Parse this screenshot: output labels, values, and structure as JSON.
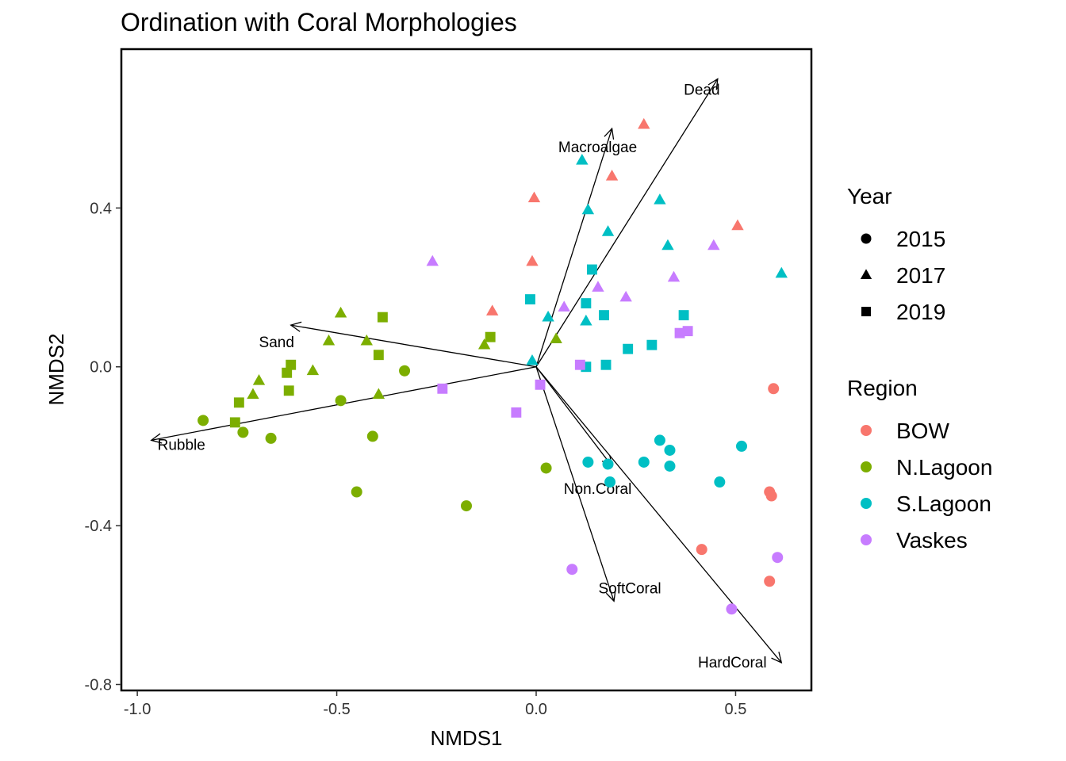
{
  "chart_data": {
    "type": "scatter",
    "title": "Ordination with Coral Morphologies",
    "xlabel": "NMDS1",
    "ylabel": "NMDS2",
    "xlim": [
      -1.04,
      0.69
    ],
    "ylim": [
      -0.815,
      0.8
    ],
    "x_ticks": [
      -1.0,
      -0.5,
      0.0,
      0.5
    ],
    "x_tick_labels": [
      "-1.0",
      "-0.5",
      "0.0",
      "0.5"
    ],
    "y_ticks": [
      -0.8,
      -0.4,
      0.0,
      0.4
    ],
    "y_tick_labels": [
      "-0.8",
      "-0.4",
      "0.0",
      "0.4"
    ],
    "grid": false,
    "legend_placement": "right",
    "legend_year": {
      "title": "Year",
      "entries": [
        {
          "label": "2015",
          "shape": "circle"
        },
        {
          "label": "2017",
          "shape": "triangle"
        },
        {
          "label": "2019",
          "shape": "square"
        }
      ]
    },
    "legend_region": {
      "title": "Region",
      "entries": [
        {
          "label": "BOW",
          "color": "#F8766D"
        },
        {
          "label": "N.Lagoon",
          "color": "#7CAE00"
        },
        {
          "label": "S.Lagoon",
          "color": "#00BFC4"
        },
        {
          "label": "Vaskes",
          "color": "#C77CFF"
        }
      ]
    },
    "vectors": [
      {
        "label": "Dead",
        "x": 0.455,
        "y": 0.725
      },
      {
        "label": "Macroalgae",
        "x": 0.19,
        "y": 0.6
      },
      {
        "label": "Sand",
        "x": -0.615,
        "y": 0.105
      },
      {
        "label": "Rubble",
        "x": -0.965,
        "y": -0.185
      },
      {
        "label": "Non.Coral",
        "x": 0.19,
        "y": -0.25
      },
      {
        "label": "SoftCoral",
        "x": 0.195,
        "y": -0.59
      },
      {
        "label": "HardCoral",
        "x": 0.615,
        "y": -0.745
      }
    ],
    "points": [
      {
        "x": 0.27,
        "y": 0.61,
        "year": "2017",
        "region": "BOW"
      },
      {
        "x": 0.19,
        "y": 0.48,
        "year": "2017",
        "region": "BOW"
      },
      {
        "x": -0.005,
        "y": 0.425,
        "year": "2017",
        "region": "BOW"
      },
      {
        "x": -0.01,
        "y": 0.265,
        "year": "2017",
        "region": "BOW"
      },
      {
        "x": -0.11,
        "y": 0.14,
        "year": "2017",
        "region": "BOW"
      },
      {
        "x": 0.505,
        "y": 0.355,
        "year": "2017",
        "region": "BOW"
      },
      {
        "x": 0.115,
        "y": 0.52,
        "year": "2017",
        "region": "S.Lagoon"
      },
      {
        "x": 0.13,
        "y": 0.395,
        "year": "2017",
        "region": "S.Lagoon"
      },
      {
        "x": 0.18,
        "y": 0.34,
        "year": "2017",
        "region": "S.Lagoon"
      },
      {
        "x": 0.31,
        "y": 0.42,
        "year": "2017",
        "region": "S.Lagoon"
      },
      {
        "x": 0.33,
        "y": 0.305,
        "year": "2017",
        "region": "S.Lagoon"
      },
      {
        "x": 0.615,
        "y": 0.235,
        "year": "2017",
        "region": "S.Lagoon"
      },
      {
        "x": 0.03,
        "y": 0.125,
        "year": "2017",
        "region": "S.Lagoon"
      },
      {
        "x": 0.125,
        "y": 0.115,
        "year": "2017",
        "region": "S.Lagoon"
      },
      {
        "x": -0.01,
        "y": 0.015,
        "year": "2017",
        "region": "S.Lagoon"
      },
      {
        "x": -0.26,
        "y": 0.265,
        "year": "2017",
        "region": "Vaskes"
      },
      {
        "x": 0.445,
        "y": 0.305,
        "year": "2017",
        "region": "Vaskes"
      },
      {
        "x": 0.345,
        "y": 0.225,
        "year": "2017",
        "region": "Vaskes"
      },
      {
        "x": 0.155,
        "y": 0.2,
        "year": "2017",
        "region": "Vaskes"
      },
      {
        "x": 0.225,
        "y": 0.175,
        "year": "2017",
        "region": "Vaskes"
      },
      {
        "x": 0.07,
        "y": 0.15,
        "year": "2017",
        "region": "Vaskes"
      },
      {
        "x": -0.49,
        "y": 0.135,
        "year": "2017",
        "region": "N.Lagoon"
      },
      {
        "x": -0.52,
        "y": 0.065,
        "year": "2017",
        "region": "N.Lagoon"
      },
      {
        "x": -0.425,
        "y": 0.065,
        "year": "2017",
        "region": "N.Lagoon"
      },
      {
        "x": -0.13,
        "y": 0.055,
        "year": "2017",
        "region": "N.Lagoon"
      },
      {
        "x": 0.05,
        "y": 0.07,
        "year": "2017",
        "region": "N.Lagoon"
      },
      {
        "x": -0.56,
        "y": -0.01,
        "year": "2017",
        "region": "N.Lagoon"
      },
      {
        "x": -0.695,
        "y": -0.035,
        "year": "2017",
        "region": "N.Lagoon"
      },
      {
        "x": -0.71,
        "y": -0.07,
        "year": "2017",
        "region": "N.Lagoon"
      },
      {
        "x": -0.395,
        "y": -0.07,
        "year": "2017",
        "region": "N.Lagoon"
      },
      {
        "x": 0.14,
        "y": 0.245,
        "year": "2019",
        "region": "S.Lagoon"
      },
      {
        "x": -0.015,
        "y": 0.17,
        "year": "2019",
        "region": "S.Lagoon"
      },
      {
        "x": 0.125,
        "y": 0.16,
        "year": "2019",
        "region": "S.Lagoon"
      },
      {
        "x": 0.17,
        "y": 0.13,
        "year": "2019",
        "region": "S.Lagoon"
      },
      {
        "x": 0.37,
        "y": 0.13,
        "year": "2019",
        "region": "S.Lagoon"
      },
      {
        "x": 0.29,
        "y": 0.055,
        "year": "2019",
        "region": "S.Lagoon"
      },
      {
        "x": 0.23,
        "y": 0.045,
        "year": "2019",
        "region": "S.Lagoon"
      },
      {
        "x": 0.125,
        "y": 0.0,
        "year": "2019",
        "region": "S.Lagoon"
      },
      {
        "x": 0.175,
        "y": 0.005,
        "year": "2019",
        "region": "S.Lagoon"
      },
      {
        "x": 0.36,
        "y": 0.085,
        "year": "2019",
        "region": "Vaskes"
      },
      {
        "x": 0.38,
        "y": 0.09,
        "year": "2019",
        "region": "Vaskes"
      },
      {
        "x": 0.11,
        "y": 0.005,
        "year": "2019",
        "region": "Vaskes"
      },
      {
        "x": 0.01,
        "y": -0.045,
        "year": "2019",
        "region": "Vaskes"
      },
      {
        "x": -0.235,
        "y": -0.055,
        "year": "2019",
        "region": "Vaskes"
      },
      {
        "x": -0.05,
        "y": -0.115,
        "year": "2019",
        "region": "Vaskes"
      },
      {
        "x": -0.385,
        "y": 0.125,
        "year": "2019",
        "region": "N.Lagoon"
      },
      {
        "x": -0.115,
        "y": 0.075,
        "year": "2019",
        "region": "N.Lagoon"
      },
      {
        "x": -0.395,
        "y": 0.03,
        "year": "2019",
        "region": "N.Lagoon"
      },
      {
        "x": -0.615,
        "y": 0.005,
        "year": "2019",
        "region": "N.Lagoon"
      },
      {
        "x": -0.625,
        "y": -0.015,
        "year": "2019",
        "region": "N.Lagoon"
      },
      {
        "x": -0.62,
        "y": -0.06,
        "year": "2019",
        "region": "N.Lagoon"
      },
      {
        "x": -0.745,
        "y": -0.09,
        "year": "2019",
        "region": "N.Lagoon"
      },
      {
        "x": -0.755,
        "y": -0.14,
        "year": "2019",
        "region": "N.Lagoon"
      },
      {
        "x": 0.595,
        "y": -0.055,
        "year": "2015",
        "region": "BOW"
      },
      {
        "x": 0.585,
        "y": -0.315,
        "year": "2015",
        "region": "BOW"
      },
      {
        "x": 0.59,
        "y": -0.325,
        "year": "2015",
        "region": "BOW"
      },
      {
        "x": 0.415,
        "y": -0.46,
        "year": "2015",
        "region": "BOW"
      },
      {
        "x": 0.585,
        "y": -0.54,
        "year": "2015",
        "region": "BOW"
      },
      {
        "x": 0.515,
        "y": -0.2,
        "year": "2015",
        "region": "S.Lagoon"
      },
      {
        "x": 0.31,
        "y": -0.185,
        "year": "2015",
        "region": "S.Lagoon"
      },
      {
        "x": 0.335,
        "y": -0.21,
        "year": "2015",
        "region": "S.Lagoon"
      },
      {
        "x": 0.13,
        "y": -0.24,
        "year": "2015",
        "region": "S.Lagoon"
      },
      {
        "x": 0.18,
        "y": -0.245,
        "year": "2015",
        "region": "S.Lagoon"
      },
      {
        "x": 0.27,
        "y": -0.24,
        "year": "2015",
        "region": "S.Lagoon"
      },
      {
        "x": 0.335,
        "y": -0.25,
        "year": "2015",
        "region": "S.Lagoon"
      },
      {
        "x": 0.46,
        "y": -0.29,
        "year": "2015",
        "region": "S.Lagoon"
      },
      {
        "x": 0.185,
        "y": -0.29,
        "year": "2015",
        "region": "S.Lagoon"
      },
      {
        "x": 0.605,
        "y": -0.48,
        "year": "2015",
        "region": "Vaskes"
      },
      {
        "x": 0.09,
        "y": -0.51,
        "year": "2015",
        "region": "Vaskes"
      },
      {
        "x": 0.49,
        "y": -0.61,
        "year": "2015",
        "region": "Vaskes"
      },
      {
        "x": -0.33,
        "y": -0.01,
        "year": "2015",
        "region": "N.Lagoon"
      },
      {
        "x": -0.49,
        "y": -0.085,
        "year": "2015",
        "region": "N.Lagoon"
      },
      {
        "x": -0.835,
        "y": -0.135,
        "year": "2015",
        "region": "N.Lagoon"
      },
      {
        "x": -0.735,
        "y": -0.165,
        "year": "2015",
        "region": "N.Lagoon"
      },
      {
        "x": -0.665,
        "y": -0.18,
        "year": "2015",
        "region": "N.Lagoon"
      },
      {
        "x": -0.41,
        "y": -0.175,
        "year": "2015",
        "region": "N.Lagoon"
      },
      {
        "x": 0.025,
        "y": -0.255,
        "year": "2015",
        "region": "N.Lagoon"
      },
      {
        "x": -0.45,
        "y": -0.315,
        "year": "2015",
        "region": "N.Lagoon"
      },
      {
        "x": -0.175,
        "y": -0.35,
        "year": "2015",
        "region": "N.Lagoon"
      }
    ]
  }
}
